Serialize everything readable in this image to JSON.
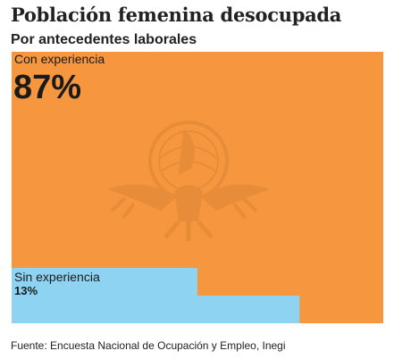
{
  "title": "Población femenina desocupada",
  "subtitle": "Por antecedentes laborales",
  "source": "Fuente: Encuesta Nacional de Ocupación y Empleo, Inegi",
  "watermark": "eagle-seal-logo",
  "chart_data": {
    "type": "treemap",
    "title": "Población femenina desocupada",
    "subtitle": "Por antecedentes laborales",
    "categories": [
      "Con experiencia",
      "Sin experiencia"
    ],
    "values": [
      87,
      13
    ],
    "value_labels": [
      "87%",
      "13%"
    ],
    "unit": "%",
    "colors": [
      "#f6963f",
      "#8fd3f2"
    ]
  }
}
